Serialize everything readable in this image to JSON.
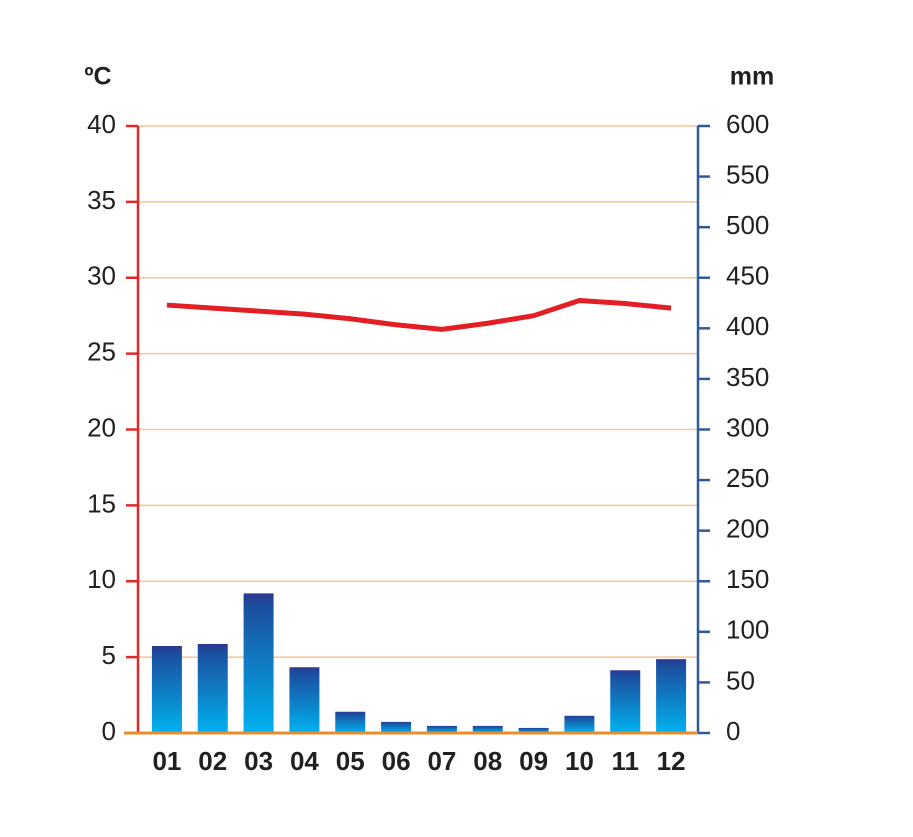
{
  "chart_data": {
    "type": "combo",
    "y_unit": "ºC",
    "y2_unit": "mm",
    "categories": [
      "01",
      "02",
      "03",
      "04",
      "05",
      "06",
      "07",
      "08",
      "09",
      "10",
      "11",
      "12"
    ],
    "series": [
      {
        "type": "bar",
        "axis": "y2",
        "color": "#1b4fa0",
        "values": [
          86,
          88,
          138,
          65,
          21,
          11,
          7,
          7,
          5,
          17,
          62,
          73
        ]
      },
      {
        "type": "line",
        "axis": "y",
        "color": "#e31e24",
        "values": [
          28.2,
          28.0,
          27.8,
          27.6,
          27.3,
          26.9,
          26.6,
          27.0,
          27.5,
          28.5,
          28.3,
          28.0
        ]
      }
    ],
    "ylim": [
      0,
      40
    ],
    "yticks": [
      0,
      5,
      10,
      15,
      20,
      25,
      30,
      35,
      40
    ],
    "y2lim": [
      0,
      600
    ],
    "y2ticks": [
      0,
      50,
      100,
      150,
      200,
      250,
      300,
      350,
      400,
      450,
      500,
      550,
      600
    ],
    "grid": true
  }
}
